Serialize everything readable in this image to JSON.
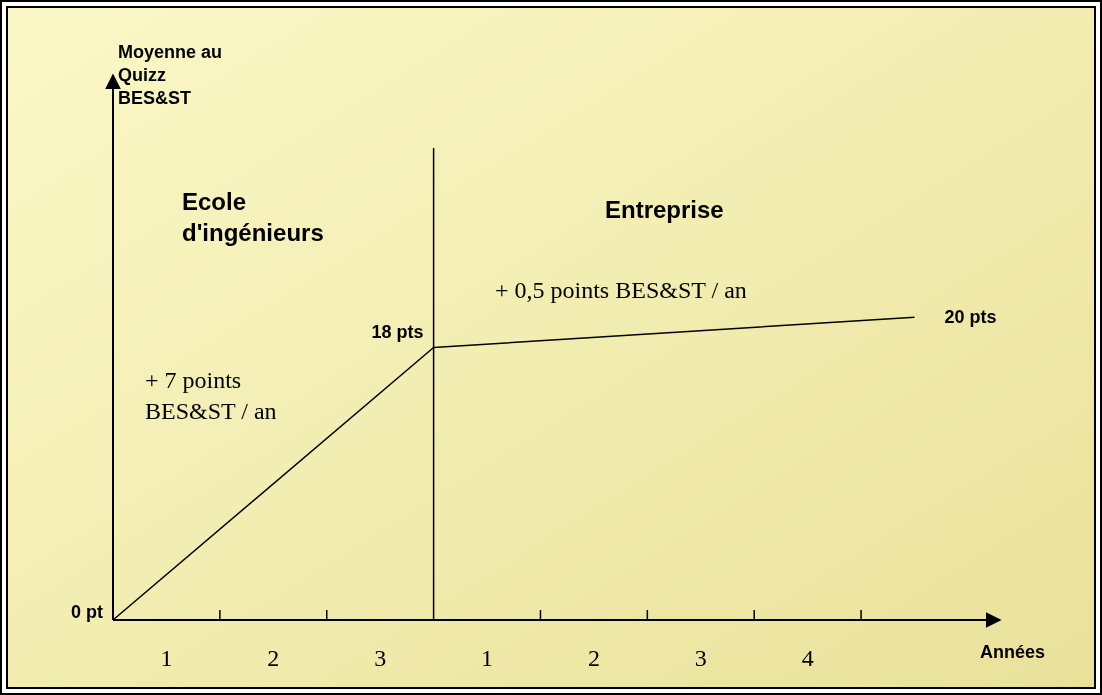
{
  "chart_data": {
    "type": "line",
    "xlabel": "Années",
    "ylabel": "Moyenne au\nQuizz\nBES&ST",
    "x": [
      0.5,
      3.5,
      8
    ],
    "series": [
      {
        "color": "#000000",
        "values": [
          0,
          18,
          20
        ],
        "value_labels": [
          "0 pt",
          "18 pts",
          "20 pts"
        ]
      }
    ],
    "xlim": [
      0.5,
      8.8
    ],
    "ylim": [
      0,
      36
    ],
    "xticks": [
      1,
      {
        "value": 1.5,
        "label": null
      },
      2,
      {
        "value": 2.5,
        "label": null
      },
      3
    ],
    "x2lim": [
      -2.5,
      5.8
    ],
    "x2ticks": [
      1,
      {
        "value": 1.5,
        "label": null
      },
      2,
      {
        "value": 2.5,
        "label": null
      },
      3,
      {
        "value": 3.5,
        "label": null
      },
      4,
      {
        "value": 4.5,
        "label": null
      }
    ],
    "tick_labels": "x",
    "grid": false,
    "marker": "none",
    "line_style": "solid",
    "ref_lines": [
      {
        "axis": "x",
        "value": 3.5,
        "color": "#000000"
      }
    ],
    "annotations": [
      "Ecole\nd'ingénieurs",
      "Entreprise",
      "+ 0,5 points BES&ST / an",
      "+ 7 points\nBES&ST / an"
    ]
  }
}
